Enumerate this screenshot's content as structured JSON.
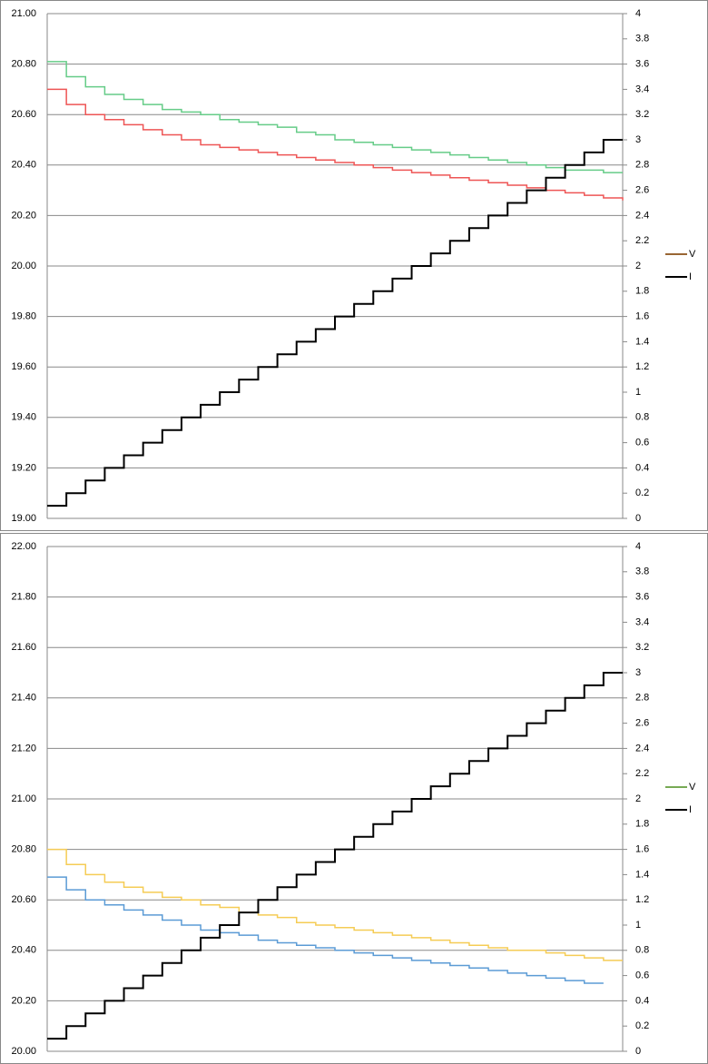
{
  "chart_data": [
    {
      "type": "line",
      "step": true,
      "x": [
        0,
        1,
        2,
        3,
        4,
        5,
        6,
        7,
        8,
        9,
        10,
        11,
        12,
        13,
        14,
        15,
        16,
        17,
        18,
        19,
        20,
        21,
        22,
        23,
        24,
        25,
        26,
        27,
        28,
        29,
        30
      ],
      "xlim": [
        0,
        30
      ],
      "ylim": [
        19,
        21
      ],
      "yticks": [
        {
          "value": 19,
          "label": "19.00"
        },
        {
          "value": 19.2,
          "label": "19.20"
        },
        {
          "value": 19.4,
          "label": "19.40"
        },
        {
          "value": 19.6,
          "label": "19.60"
        },
        {
          "value": 19.8,
          "label": "19.80"
        },
        {
          "value": 20,
          "label": "20.00"
        },
        {
          "value": 20.2,
          "label": "20.20"
        },
        {
          "value": 20.4,
          "label": "20.40"
        },
        {
          "value": 20.6,
          "label": "20.60"
        },
        {
          "value": 20.8,
          "label": "20.80"
        },
        {
          "value": 21,
          "label": "21.00"
        }
      ],
      "y2lim": [
        0,
        4
      ],
      "y2ticks": [
        0,
        0.2,
        0.4,
        0.6,
        0.8,
        1,
        1.2,
        1.4,
        1.6,
        1.8,
        2,
        2.2,
        2.4,
        2.6,
        2.8,
        3,
        3.2,
        3.4,
        3.6,
        3.8,
        4
      ],
      "grid": true,
      "series": [
        {
          "color": "#66cc88",
          "values": [
            20.81,
            20.75,
            20.71,
            20.68,
            20.66,
            20.64,
            20.62,
            20.61,
            20.6,
            20.58,
            20.57,
            20.56,
            20.55,
            20.53,
            20.52,
            20.5,
            20.49,
            20.48,
            20.47,
            20.46,
            20.45,
            20.44,
            20.43,
            20.42,
            20.41,
            20.4,
            20.39,
            20.38,
            20.38,
            20.37,
            20.37
          ]
        },
        {
          "color": "#ee5555",
          "values": [
            20.7,
            20.64,
            20.6,
            20.58,
            20.56,
            20.54,
            20.52,
            20.5,
            20.48,
            20.47,
            20.46,
            20.45,
            20.44,
            20.43,
            20.42,
            20.41,
            20.4,
            20.39,
            20.38,
            20.37,
            20.36,
            20.35,
            20.34,
            20.33,
            20.32,
            20.31,
            20.3,
            20.29,
            20.28,
            20.27,
            20.26
          ]
        },
        {
          "color": "#000000",
          "axis": "y2",
          "values": [
            0.1,
            0.2,
            0.3,
            0.4,
            0.5,
            0.6,
            0.7,
            0.8,
            0.9,
            1,
            1.1,
            1.2,
            1.3,
            1.4,
            1.5,
            1.6,
            1.7,
            1.8,
            1.9,
            2,
            2.1,
            2.2,
            2.3,
            2.4,
            2.5,
            2.6,
            2.7,
            2.8,
            2.9,
            3,
            3
          ]
        }
      ],
      "legend": [
        {
          "name": "V",
          "color": "#996633"
        },
        {
          "name": "I",
          "color": "#000000"
        }
      ]
    },
    {
      "type": "line",
      "step": true,
      "x": [
        0,
        1,
        2,
        3,
        4,
        5,
        6,
        7,
        8,
        9,
        10,
        11,
        12,
        13,
        14,
        15,
        16,
        17,
        18,
        19,
        20,
        21,
        22,
        23,
        24,
        25,
        26,
        27,
        28,
        29,
        30
      ],
      "xlim": [
        0,
        30
      ],
      "ylim": [
        20,
        22
      ],
      "yticks": [
        {
          "value": 20,
          "label": "20.00"
        },
        {
          "value": 20.2,
          "label": "20.20"
        },
        {
          "value": 20.4,
          "label": "20.40"
        },
        {
          "value": 20.6,
          "label": "20.60"
        },
        {
          "value": 20.8,
          "label": "20.80"
        },
        {
          "value": 21,
          "label": "21.00"
        },
        {
          "value": 21.2,
          "label": "21.20"
        },
        {
          "value": 21.4,
          "label": "21.40"
        },
        {
          "value": 21.6,
          "label": "21.60"
        },
        {
          "value": 21.8,
          "label": "21.80"
        },
        {
          "value": 22,
          "label": "22.00"
        }
      ],
      "y2lim": [
        0,
        4
      ],
      "y2ticks": [
        0,
        0.2,
        0.4,
        0.6,
        0.8,
        1,
        1.2,
        1.4,
        1.6,
        1.8,
        2,
        2.2,
        2.4,
        2.6,
        2.8,
        3,
        3.2,
        3.4,
        3.6,
        3.8,
        4
      ],
      "grid": true,
      "series": [
        {
          "color": "#f5cc55",
          "values": [
            20.8,
            20.74,
            20.7,
            20.67,
            20.65,
            20.63,
            20.61,
            20.6,
            20.58,
            20.57,
            20.55,
            20.54,
            20.53,
            20.51,
            20.5,
            20.49,
            20.48,
            20.47,
            20.46,
            20.45,
            20.44,
            20.43,
            20.42,
            20.41,
            20.4,
            20.4,
            20.39,
            20.38,
            20.37,
            20.36,
            20.36
          ]
        },
        {
          "color": "#5b9bd5",
          "values": [
            20.69,
            20.64,
            20.6,
            20.58,
            20.56,
            20.54,
            20.52,
            20.5,
            20.48,
            20.47,
            20.46,
            20.44,
            20.43,
            20.42,
            20.41,
            20.4,
            20.39,
            20.38,
            20.37,
            20.36,
            20.35,
            20.34,
            20.33,
            20.32,
            20.31,
            20.3,
            20.29,
            20.28,
            20.27,
            20.27,
            null
          ]
        },
        {
          "color": "#000000",
          "axis": "y2",
          "values": [
            0.1,
            0.2,
            0.3,
            0.4,
            0.5,
            0.6,
            0.7,
            0.8,
            0.9,
            1,
            1.1,
            1.2,
            1.3,
            1.4,
            1.5,
            1.6,
            1.7,
            1.8,
            1.9,
            2,
            2.1,
            2.2,
            2.3,
            2.4,
            2.5,
            2.6,
            2.7,
            2.8,
            2.9,
            3,
            3
          ]
        }
      ],
      "legend": [
        {
          "name": "V",
          "color": "#77aa55"
        },
        {
          "name": "I",
          "color": "#000000"
        }
      ]
    }
  ]
}
